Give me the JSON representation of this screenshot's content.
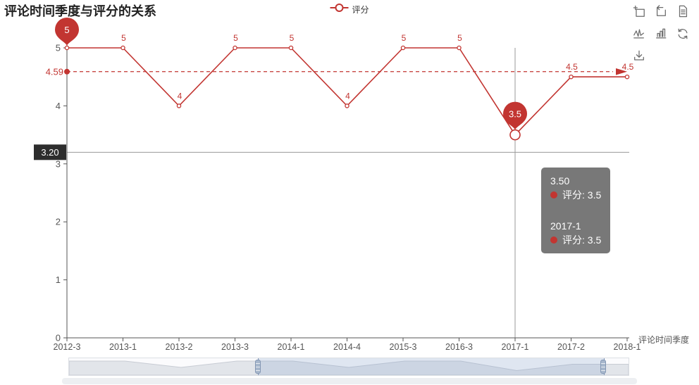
{
  "title": {
    "text": "评论时间季度与评分的关系"
  },
  "legend": {
    "label": "评分"
  },
  "toolbox": {
    "icons": [
      "zoom-select",
      "zoom-reset",
      "data-view",
      "switch-to-line",
      "switch-to-bar",
      "restore",
      "save-image"
    ]
  },
  "chart_data": {
    "type": "line",
    "title": "评论时间季度与评分的关系",
    "categories": [
      "2012-3",
      "2013-1",
      "2013-2",
      "2013-3",
      "2014-1",
      "2014-4",
      "2015-3",
      "2016-3",
      "2017-1",
      "2017-2",
      "2018-1"
    ],
    "series": [
      {
        "name": "评分",
        "values": [
          5,
          5,
          4,
          5,
          5,
          4,
          5,
          5,
          3.5,
          4.5,
          4.5
        ]
      }
    ],
    "xlabel": "评论时间季度",
    "ylabel": "",
    "ylim": [
      0,
      5
    ],
    "y_ticks": [
      0,
      1,
      2,
      3,
      4,
      5
    ],
    "grid": false,
    "legend_position": "top-center",
    "average_line": {
      "value": 4.59,
      "label": "4.59"
    },
    "mark_points": [
      {
        "category": "2012-3",
        "value": 5,
        "label": "5"
      },
      {
        "category": "2017-1",
        "value": 3.5,
        "label": "3.5"
      }
    ],
    "axis_pointer": {
      "category": "2017-1",
      "y_value": 3.2,
      "y_label": "3.20"
    },
    "colors": {
      "series": "#c23531",
      "axis": "#555555",
      "pointer_line": "#999999",
      "pointer_label_bg": "#2d2d2d",
      "datazoom_fill": "#e2e5ea",
      "datazoom_stroke": "#c8ccd4"
    }
  },
  "tooltip": {
    "sections": [
      {
        "title": "3.50",
        "item": "评分: 3.5"
      },
      {
        "title": "2017-1",
        "item": "评分: 3.5"
      }
    ]
  },
  "datazoom": {
    "window_start_pct": 33.8,
    "window_end_pct": 95.5
  }
}
